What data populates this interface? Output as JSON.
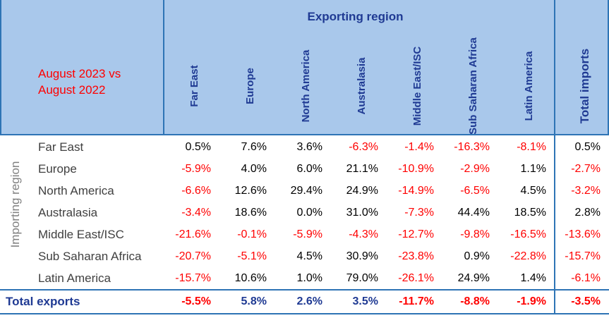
{
  "table": {
    "exporting_label": "Exporting region",
    "importing_label": "Importing region",
    "period": [
      "August 2023 vs",
      "August 2022"
    ],
    "columns": [
      "Far East",
      "Europe",
      "North America",
      "Australasia",
      "Middle East/ISC",
      "Sub Saharan Africa",
      "Latin America",
      "Total imports"
    ],
    "rows": [
      {
        "label": "Far East",
        "values": [
          "0.5%",
          "7.6%",
          "3.6%",
          "-6.3%",
          "-1.4%",
          "-16.3%",
          "-8.1%",
          "0.5%"
        ]
      },
      {
        "label": "Europe",
        "values": [
          "-5.9%",
          "4.0%",
          "6.0%",
          "21.1%",
          "-10.9%",
          "-2.9%",
          "1.1%",
          "-2.7%"
        ]
      },
      {
        "label": "North America",
        "values": [
          "-6.6%",
          "12.6%",
          "29.4%",
          "24.9%",
          "-14.9%",
          "-6.5%",
          "4.5%",
          "-3.2%"
        ]
      },
      {
        "label": "Australasia",
        "values": [
          "-3.4%",
          "18.6%",
          "0.0%",
          "31.0%",
          "-7.3%",
          "44.4%",
          "18.5%",
          "2.8%"
        ]
      },
      {
        "label": "Middle East/ISC",
        "values": [
          "-21.6%",
          "-0.1%",
          "-5.9%",
          "-4.3%",
          "-12.7%",
          "-9.8%",
          "-16.5%",
          "-13.6%"
        ]
      },
      {
        "label": "Sub Saharan Africa",
        "values": [
          "-20.7%",
          "-5.1%",
          "4.5%",
          "30.9%",
          "-23.8%",
          "0.9%",
          "-22.8%",
          "-15.7%"
        ]
      },
      {
        "label": "Latin America",
        "values": [
          "-15.7%",
          "10.6%",
          "1.0%",
          "79.0%",
          "-26.1%",
          "24.9%",
          "1.4%",
          "-6.1%"
        ]
      }
    ],
    "total_row": {
      "label": "Total exports",
      "values": [
        "-5.5%",
        "5.8%",
        "2.6%",
        "3.5%",
        "-11.7%",
        "-8.8%",
        "-1.9%",
        "-3.5%"
      ]
    },
    "colors": {
      "header_bg": "#a9c8eb",
      "rule": "#2e74b5",
      "header_text": "#1f3a93",
      "negative": "#ff0000"
    }
  }
}
